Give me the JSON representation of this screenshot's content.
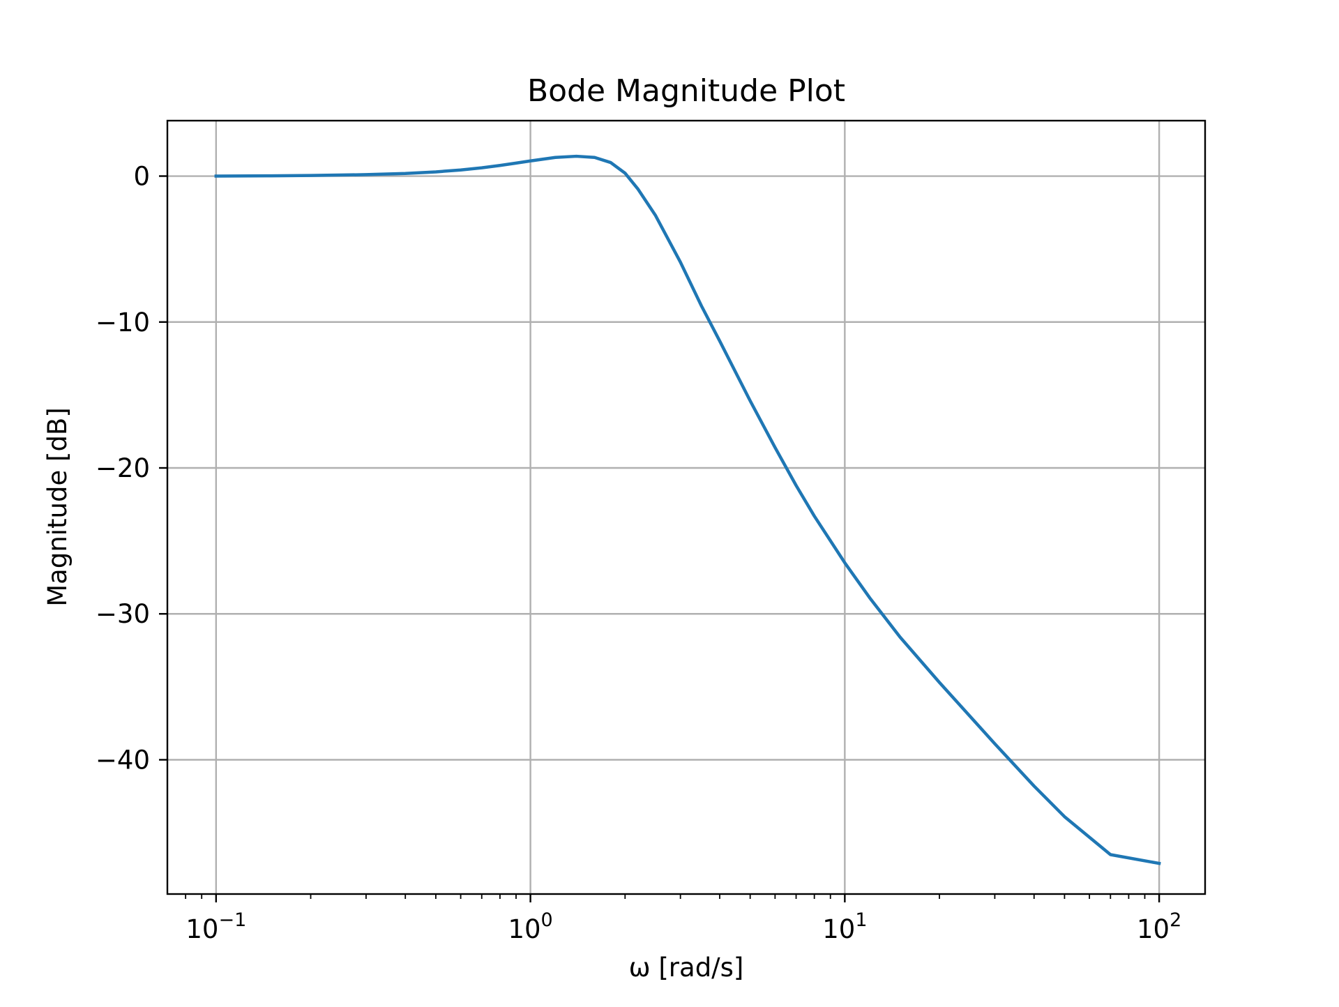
{
  "chart_data": {
    "type": "line",
    "title": "Bode Magnitude Plot",
    "xlabel": "ω [rad/s]",
    "ylabel": "Magnitude [dB]",
    "xscale": "log",
    "xlim": [
      0.07,
      140
    ],
    "ylim": [
      -49.2,
      3.8
    ],
    "grid": true,
    "x_ticks": [
      {
        "value": 0.1,
        "base": "10",
        "exp": "−1"
      },
      {
        "value": 1,
        "base": "10",
        "exp": "0"
      },
      {
        "value": 10,
        "base": "10",
        "exp": "1"
      },
      {
        "value": 100,
        "base": "10",
        "exp": "2"
      }
    ],
    "y_ticks": [
      {
        "value": 0,
        "label": "0"
      },
      {
        "value": -10,
        "label": "−10"
      },
      {
        "value": -20,
        "label": "−20"
      },
      {
        "value": -30,
        "label": "−30"
      },
      {
        "value": -40,
        "label": "−40"
      }
    ],
    "series": [
      {
        "color": "#1f77b4",
        "x": [
          0.1,
          0.15,
          0.2,
          0.3,
          0.4,
          0.5,
          0.6,
          0.7,
          0.8,
          0.9,
          1.0,
          1.2,
          1.4,
          1.6,
          1.8,
          2.0,
          2.2,
          2.5,
          3.0,
          3.5,
          4.0,
          5.0,
          6.0,
          7.0,
          8.0,
          10,
          12,
          15,
          20,
          30,
          40,
          50,
          70,
          100
        ],
        "y": [
          0,
          0.02,
          0.04,
          0.1,
          0.18,
          0.29,
          0.42,
          0.57,
          0.73,
          0.89,
          1.04,
          1.28,
          1.36,
          1.28,
          0.93,
          0.2,
          -0.9,
          -2.7,
          -5.9,
          -8.9,
          -11.3,
          -15.4,
          -18.6,
          -21.2,
          -23.3,
          -26.5,
          -28.9,
          -31.6,
          -34.7,
          -38.9,
          -41.8,
          -43.9,
          -46.5,
          -47.1
        ]
      }
    ]
  }
}
